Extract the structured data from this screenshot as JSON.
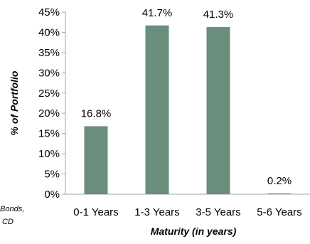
{
  "chart_data": {
    "type": "bar",
    "categories": [
      "0-1 Years",
      "1-3 Years",
      "3-5 Years",
      "5-6 Years"
    ],
    "values": [
      16.8,
      41.7,
      41.3,
      0.2
    ],
    "data_labels": [
      "16.8%",
      "41.7%",
      "41.3%",
      "0.2%"
    ],
    "title": "",
    "xlabel": "Maturity (in years)",
    "ylabel": "% of Portfolio",
    "ylim": [
      0,
      45
    ],
    "yticks": [
      0,
      5,
      10,
      15,
      20,
      25,
      30,
      35,
      40,
      45
    ],
    "ytick_labels": [
      "0%",
      "5%",
      "10%",
      "15%",
      "20%",
      "25%",
      "30%",
      "35%",
      "40%",
      "45%"
    ],
    "grid": false,
    "legend": "none",
    "bar_color": "#6b8e7c",
    "side_note": [
      "Bonds,",
      "CD"
    ]
  }
}
